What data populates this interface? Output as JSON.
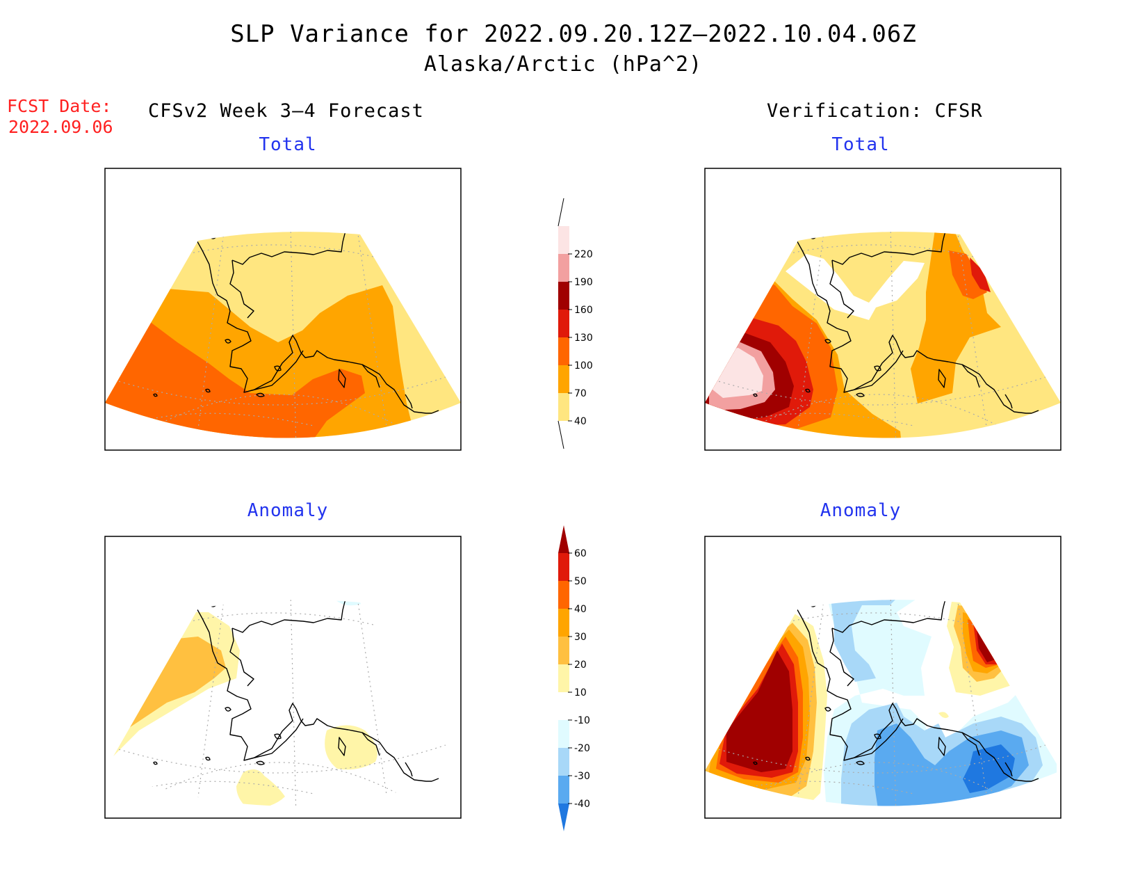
{
  "title": "SLP Variance for 2022.09.20.12Z–2022.10.04.06Z",
  "subtitle": "Alaska/Arctic (hPa^2)",
  "fcst": {
    "label": "FCST Date:",
    "date": "2022.09.06"
  },
  "columns": {
    "left": "CFSv2 Week 3–4 Forecast",
    "right": "Verification: CFSR"
  },
  "panels": {
    "top_left": {
      "title": "Total"
    },
    "top_right": {
      "title": "Total"
    },
    "bottom_left": {
      "title": "Anomaly"
    },
    "bottom_right": {
      "title": "Anomaly"
    }
  },
  "colorbars": {
    "total": {
      "levels": [
        "220",
        "190",
        "160",
        "130",
        "100",
        "70",
        "40"
      ],
      "colors": [
        "#fce4e4",
        "#f2a0a0",
        "#a00000",
        "#e01a0a",
        "#ff6600",
        "#ffa500",
        "#ffe680"
      ]
    },
    "anomaly": {
      "levels": [
        "60",
        "50",
        "40",
        "30",
        "20",
        "10",
        "-10",
        "-20",
        "-30",
        "-40"
      ],
      "colors": [
        "#a00000",
        "#e01a0a",
        "#ff6600",
        "#ffa500",
        "#ffc040",
        "#fff5a8",
        "#ffffff",
        "#e0fbff",
        "#a8d8f8",
        "#5aaaf0",
        "#1f78e0"
      ]
    }
  }
}
